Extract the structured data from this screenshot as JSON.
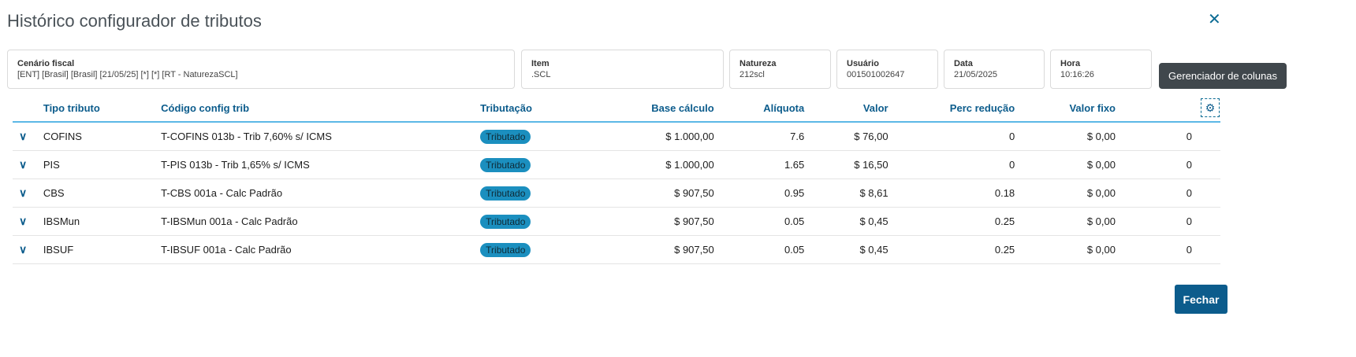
{
  "title": "Histórico configurador de tributos",
  "info": [
    {
      "label": "Cenário fiscal",
      "value": "[ENT] [Brasil] [Brasil] [21/05/25] [*] [*] [RT - NaturezaSCL]"
    },
    {
      "label": "Item",
      "value": ".SCL"
    },
    {
      "label": "Natureza",
      "value": "212scl"
    },
    {
      "label": "Usuário",
      "value": "001501002647"
    },
    {
      "label": "Data",
      "value": "21/05/2025"
    },
    {
      "label": "Hora",
      "value": "10:16:26"
    }
  ],
  "columns": [
    "Tipo tributo",
    "Código config trib",
    "Tributação",
    "Base cálculo",
    "Alíquota",
    "Valor",
    "Perc redução",
    "Valor fixo"
  ],
  "rows": [
    {
      "tipo": "COFINS",
      "codigo": "T-COFINS 013b - Trib 7,60% s/ ICMS",
      "trib": "Tributado",
      "base": "$ 1.000,00",
      "aliq": "7.6",
      "valor": "$ 76,00",
      "perc": "0",
      "fixo": "$ 0,00",
      "extra": "0"
    },
    {
      "tipo": "PIS",
      "codigo": "T-PIS 013b - Trib 1,65% s/ ICMS",
      "trib": "Tributado",
      "base": "$ 1.000,00",
      "aliq": "1.65",
      "valor": "$ 16,50",
      "perc": "0",
      "fixo": "$ 0,00",
      "extra": "0"
    },
    {
      "tipo": "CBS",
      "codigo": "T-CBS 001a - Calc Padrão",
      "trib": "Tributado",
      "base": "$ 907,50",
      "aliq": "0.95",
      "valor": "$ 8,61",
      "perc": "0.18",
      "fixo": "$ 0,00",
      "extra": "0"
    },
    {
      "tipo": "IBSMun",
      "codigo": "T-IBSMun 001a - Calc Padrão",
      "trib": "Tributado",
      "base": "$ 907,50",
      "aliq": "0.05",
      "valor": "$ 0,45",
      "perc": "0.25",
      "fixo": "$ 0,00",
      "extra": "0"
    },
    {
      "tipo": "IBSUF",
      "codigo": "T-IBSUF 001a - Calc Padrão",
      "trib": "Tributado",
      "base": "$ 907,50",
      "aliq": "0.05",
      "valor": "$ 0,45",
      "perc": "0.25",
      "fixo": "$ 0,00",
      "extra": "0"
    }
  ],
  "tooltip": "Gerenciador de colunas",
  "close_label": "Fechar",
  "colors": {
    "primary": "#0c5c8c",
    "badge": "#1b8fbf"
  }
}
